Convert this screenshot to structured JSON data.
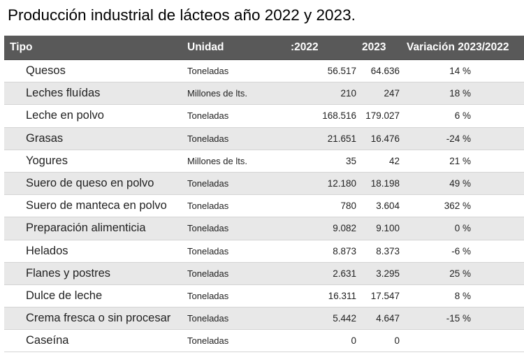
{
  "title": "Producción industrial de lácteos año 2022 y 2023.",
  "headers": {
    "tipo": "Tipo",
    "unidad": "Unidad",
    "y2022": ":2022",
    "y2023": "2023",
    "variacion": "Variación 2023/2022"
  },
  "rows": [
    {
      "tipo": "Quesos",
      "unidad": "Toneladas",
      "y2022": "56.517",
      "y2023": "64.636",
      "variacion": "14 %"
    },
    {
      "tipo": "Leches fluídas",
      "unidad": "Millones de lts.",
      "y2022": "210",
      "y2023": "247",
      "variacion": "18 %"
    },
    {
      "tipo": "Leche en polvo",
      "unidad": "Toneladas",
      "y2022": "168.516",
      "y2023": "179.027",
      "variacion": "6 %"
    },
    {
      "tipo": "Grasas",
      "unidad": "Toneladas",
      "y2022": "21.651",
      "y2023": "16.476",
      "variacion": "-24 %"
    },
    {
      "tipo": "Yogures",
      "unidad": "Millones de lts.",
      "y2022": "35",
      "y2023": "42",
      "variacion": "21 %"
    },
    {
      "tipo": "Suero de queso en polvo",
      "unidad": "Toneladas",
      "y2022": "12.180",
      "y2023": "18.198",
      "variacion": "49 %"
    },
    {
      "tipo": "Suero de manteca en polvo",
      "unidad": "Toneladas",
      "y2022": "780",
      "y2023": "3.604",
      "variacion": "362 %"
    },
    {
      "tipo": "Preparación alimenticia",
      "unidad": "Toneladas",
      "y2022": "9.082",
      "y2023": "9.100",
      "variacion": "0 %"
    },
    {
      "tipo": "Helados",
      "unidad": "Toneladas",
      "y2022": "8.873",
      "y2023": "8.373",
      "variacion": "-6 %"
    },
    {
      "tipo": "Flanes y postres",
      "unidad": "Toneladas",
      "y2022": "2.631",
      "y2023": "3.295",
      "variacion": "25 %"
    },
    {
      "tipo": "Dulce de leche",
      "unidad": "Toneladas",
      "y2022": "16.311",
      "y2023": "17.547",
      "variacion": "8 %"
    },
    {
      "tipo": "Crema fresca o sin procesar",
      "unidad": "Toneladas",
      "y2022": "5.442",
      "y2023": "4.647",
      "variacion": "-15 %"
    },
    {
      "tipo": "Caseína",
      "unidad": "Toneladas",
      "y2022": "0",
      "y2023": "0",
      "variacion": ""
    }
  ]
}
